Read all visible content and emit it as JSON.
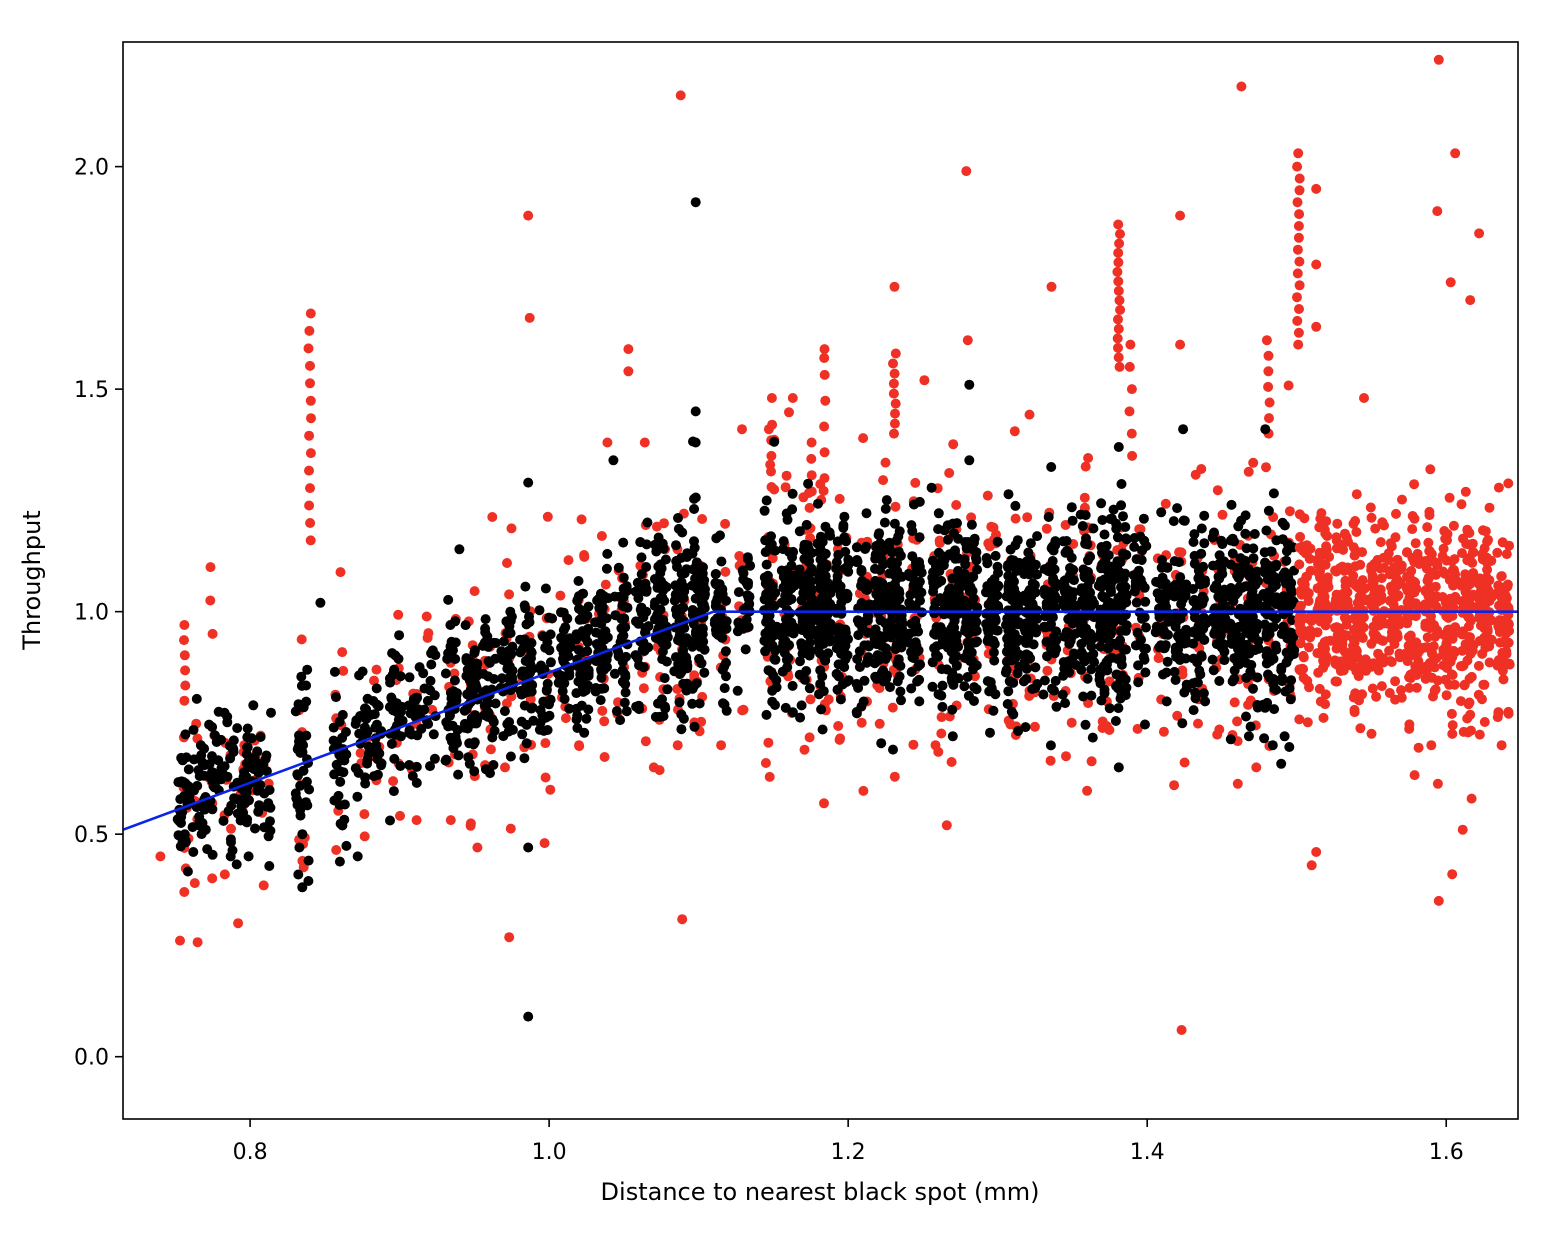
{
  "chart_data": {
    "type": "scatter",
    "xlabel": "Distance to nearest black spot (mm)",
    "ylabel": "Throughput",
    "xlim": [
      0.715,
      1.648
    ],
    "ylim": [
      -0.14,
      2.28
    ],
    "x_ticks": [
      0.8,
      1.0,
      1.2,
      1.4,
      1.6
    ],
    "x_tick_labels": [
      "0.8",
      "1.0",
      "1.2",
      "1.4",
      "1.6"
    ],
    "y_ticks": [
      0.0,
      0.5,
      1.0,
      1.5,
      2.0
    ],
    "y_tick_labels": [
      "0.0",
      "0.5",
      "1.0",
      "1.5",
      "2.0"
    ],
    "grid": false,
    "colors": {
      "red": "#ee3124",
      "black": "#000000",
      "fit": "#0a25e8"
    },
    "fit_line": {
      "x": [
        0.715,
        1.11,
        1.648
      ],
      "y": [
        0.51,
        1.0,
        1.0
      ]
    },
    "red_outliers": [
      [
        0.756,
        0.37
      ],
      [
        0.763,
        0.39
      ],
      [
        0.792,
        0.3
      ],
      [
        0.74,
        0.45
      ],
      [
        1.088,
        2.16
      ],
      [
        0.986,
        1.89
      ],
      [
        0.987,
        1.66
      ],
      [
        1.053,
        1.59
      ],
      [
        1.053,
        1.54
      ],
      [
        1.463,
        2.18
      ],
      [
        1.279,
        1.99
      ],
      [
        1.595,
        2.24
      ],
      [
        1.606,
        2.03
      ],
      [
        1.622,
        1.85
      ],
      [
        1.501,
        2.03
      ],
      [
        1.513,
        1.95
      ],
      [
        1.594,
        1.9
      ],
      [
        1.603,
        1.74
      ],
      [
        1.616,
        1.7
      ],
      [
        1.422,
        1.89
      ],
      [
        1.422,
        1.6
      ],
      [
        1.336,
        1.73
      ],
      [
        1.231,
        1.73
      ],
      [
        1.28,
        1.61
      ],
      [
        1.513,
        1.78
      ],
      [
        1.513,
        1.64
      ],
      [
        1.545,
        1.48
      ],
      [
        1.423,
        0.06
      ],
      [
        1.595,
        0.35
      ],
      [
        1.604,
        0.41
      ],
      [
        1.611,
        0.51
      ],
      [
        1.617,
        0.58
      ],
      [
        1.51,
        0.43
      ],
      [
        1.513,
        0.46
      ],
      [
        1.266,
        0.52
      ],
      [
        0.835,
        0.44
      ],
      [
        1.149,
        1.48
      ],
      [
        1.163,
        1.48
      ],
      [
        1.147,
        1.41
      ],
      [
        1.184,
        1.57
      ],
      [
        1.21,
        1.39
      ],
      [
        1.251,
        1.52
      ],
      [
        1.129,
        1.41
      ],
      [
        1.064,
        1.38
      ],
      [
        1.039,
        1.38
      ],
      [
        1.07,
        0.65
      ],
      [
        1.086,
        0.7
      ],
      [
        1.115,
        0.7
      ],
      [
        1.145,
        0.66
      ],
      [
        1.02,
        0.7
      ],
      [
        0.997,
        0.48
      ],
      [
        1.418,
        0.61
      ],
      [
        1.473,
        0.65
      ],
      [
        1.59,
        0.7
      ],
      [
        1.614,
        0.76
      ],
      [
        1.637,
        0.7
      ],
      [
        0.952,
        0.47
      ]
    ],
    "red_columns": [
      [
        0.84,
        1.16,
        1.67,
        14
      ],
      [
        0.774,
        0.95,
        1.1,
        3
      ],
      [
        0.756,
        0.8,
        0.97,
        6
      ],
      [
        1.381,
        1.55,
        1.87,
        16
      ],
      [
        1.389,
        1.35,
        1.6,
        6
      ],
      [
        1.501,
        1.6,
        2.0,
        16
      ],
      [
        1.231,
        1.4,
        1.58,
        9
      ],
      [
        1.481,
        1.4,
        1.61,
        7
      ],
      [
        1.184,
        1.3,
        1.59,
        6
      ],
      [
        1.149,
        1.28,
        1.42,
        5
      ],
      [
        1.175,
        1.27,
        1.38,
        4
      ]
    ],
    "black_outliers": [
      [
        1.098,
        1.92
      ],
      [
        0.986,
        0.09
      ],
      [
        1.098,
        1.45
      ],
      [
        1.098,
        1.38
      ],
      [
        1.281,
        1.51
      ],
      [
        1.281,
        1.34
      ],
      [
        1.424,
        1.41
      ],
      [
        1.479,
        1.41
      ],
      [
        1.381,
        1.37
      ],
      [
        1.043,
        1.34
      ],
      [
        0.986,
        1.29
      ],
      [
        0.986,
        0.47
      ],
      [
        1.381,
        0.65
      ],
      [
        0.94,
        1.14
      ],
      [
        0.787,
        0.45
      ],
      [
        0.799,
        0.45
      ],
      [
        0.872,
        0.45
      ],
      [
        0.833,
        0.47
      ],
      [
        0.762,
        0.46
      ],
      [
        0.847,
        1.02
      ],
      [
        1.23,
        0.69
      ],
      [
        1.27,
        0.72
      ],
      [
        1.468,
        0.72
      ],
      [
        1.484,
        0.7
      ]
    ],
    "clusters": [
      [
        0.756,
        0.57,
        0.07,
        "black",
        32
      ],
      [
        0.766,
        0.6,
        0.07,
        "black",
        26
      ],
      [
        0.775,
        0.62,
        0.08,
        "black",
        24
      ],
      [
        0.785,
        0.6,
        0.07,
        "black",
        24
      ],
      [
        0.795,
        0.6,
        0.07,
        "black",
        22
      ],
      [
        0.802,
        0.64,
        0.07,
        "black",
        24
      ],
      [
        0.81,
        0.62,
        0.07,
        "black",
        18
      ],
      [
        0.835,
        0.66,
        0.12,
        "black",
        40
      ],
      [
        0.86,
        0.66,
        0.09,
        "black",
        30
      ],
      [
        0.875,
        0.7,
        0.08,
        "black",
        24
      ],
      [
        0.885,
        0.72,
        0.07,
        "black",
        20
      ],
      [
        0.898,
        0.76,
        0.09,
        "black",
        32
      ],
      [
        0.91,
        0.78,
        0.08,
        "black",
        24
      ],
      [
        0.92,
        0.8,
        0.07,
        "black",
        18
      ],
      [
        0.935,
        0.83,
        0.08,
        "black",
        40
      ],
      [
        0.948,
        0.82,
        0.09,
        "black",
        50
      ],
      [
        0.96,
        0.83,
        0.1,
        "black",
        40
      ],
      [
        0.972,
        0.85,
        0.09,
        "black",
        44
      ],
      [
        0.985,
        0.87,
        0.09,
        "black",
        50
      ],
      [
        0.998,
        0.88,
        0.09,
        "black",
        30
      ],
      [
        1.01,
        0.91,
        0.08,
        "black",
        30
      ],
      [
        1.022,
        0.92,
        0.09,
        "black",
        50
      ],
      [
        1.035,
        0.95,
        0.09,
        "black",
        50
      ],
      [
        1.048,
        0.96,
        0.09,
        "black",
        40
      ],
      [
        1.062,
        0.96,
        0.1,
        "black",
        40
      ],
      [
        1.075,
        0.97,
        0.1,
        "black",
        60
      ],
      [
        1.088,
        0.98,
        0.1,
        "black",
        70
      ],
      [
        1.1,
        0.99,
        0.1,
        "black",
        70
      ],
      [
        1.115,
        1.0,
        0.1,
        "black",
        40
      ],
      [
        1.13,
        1.0,
        0.09,
        "black",
        30
      ],
      [
        1.148,
        1.0,
        0.1,
        "black",
        70
      ],
      [
        1.16,
        1.0,
        0.1,
        "black",
        60
      ],
      [
        1.172,
        1.0,
        0.1,
        "black",
        90
      ],
      [
        1.184,
        1.0,
        0.1,
        "black",
        90
      ],
      [
        1.196,
        1.0,
        0.1,
        "black",
        60
      ],
      [
        1.21,
        1.0,
        0.1,
        "black",
        50
      ],
      [
        1.222,
        1.0,
        0.1,
        "black",
        80
      ],
      [
        1.232,
        1.0,
        0.1,
        "black",
        80
      ],
      [
        1.245,
        1.0,
        0.1,
        "black",
        60
      ],
      [
        1.26,
        1.0,
        0.1,
        "black",
        60
      ],
      [
        1.27,
        1.0,
        0.1,
        "black",
        80
      ],
      [
        1.282,
        1.0,
        0.1,
        "black",
        70
      ],
      [
        1.296,
        1.0,
        0.1,
        "black",
        60
      ],
      [
        1.31,
        1.0,
        0.1,
        "black",
        80
      ],
      [
        1.322,
        1.0,
        0.1,
        "black",
        70
      ],
      [
        1.335,
        1.0,
        0.1,
        "black",
        60
      ],
      [
        1.348,
        1.0,
        0.1,
        "black",
        60
      ],
      [
        1.36,
        1.0,
        0.1,
        "black",
        70
      ],
      [
        1.372,
        1.0,
        0.1,
        "black",
        90
      ],
      [
        1.382,
        1.0,
        0.1,
        "black",
        80
      ],
      [
        1.395,
        1.0,
        0.1,
        "black",
        40
      ],
      [
        1.41,
        1.0,
        0.1,
        "black",
        50
      ],
      [
        1.422,
        1.0,
        0.1,
        "black",
        60
      ],
      [
        1.435,
        1.0,
        0.1,
        "black",
        60
      ],
      [
        1.448,
        1.0,
        0.1,
        "black",
        60
      ],
      [
        1.46,
        1.0,
        0.1,
        "black",
        70
      ],
      [
        1.47,
        1.0,
        0.1,
        "black",
        70
      ],
      [
        1.482,
        1.0,
        0.1,
        "black",
        70
      ],
      [
        1.494,
        1.0,
        0.1,
        "black",
        60
      ],
      [
        1.506,
        1.0,
        0.11,
        "red",
        70
      ],
      [
        1.518,
        1.0,
        0.11,
        "red",
        70
      ],
      [
        1.53,
        1.0,
        0.11,
        "red",
        70
      ],
      [
        1.542,
        1.0,
        0.11,
        "red",
        70
      ],
      [
        1.554,
        1.0,
        0.11,
        "red",
        70
      ],
      [
        1.566,
        1.0,
        0.11,
        "red",
        70
      ],
      [
        1.578,
        1.0,
        0.11,
        "red",
        70
      ],
      [
        1.59,
        1.0,
        0.11,
        "red",
        70
      ],
      [
        1.602,
        1.0,
        0.11,
        "red",
        70
      ],
      [
        1.614,
        1.0,
        0.11,
        "red",
        70
      ],
      [
        1.626,
        1.0,
        0.11,
        "red",
        70
      ],
      [
        1.638,
        1.0,
        0.11,
        "red",
        70
      ]
    ]
  }
}
